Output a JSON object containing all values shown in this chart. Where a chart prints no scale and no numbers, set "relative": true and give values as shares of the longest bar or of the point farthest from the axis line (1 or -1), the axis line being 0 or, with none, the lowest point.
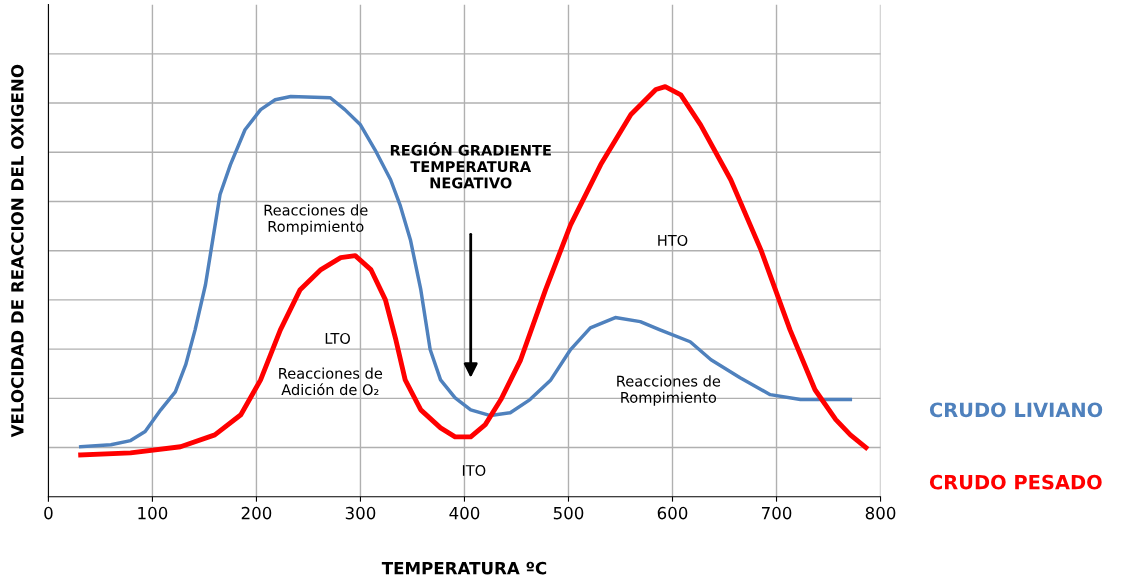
{
  "chart_data": {
    "type": "line",
    "relative": true,
    "xlabel": "TEMPERATURA ºC",
    "ylabel": "VELOCIDAD DE REACCION DEL OXIGENO",
    "xlim": [
      0,
      800
    ],
    "xticks": [
      0,
      100,
      200,
      300,
      400,
      500,
      600,
      700,
      800
    ],
    "grid": true,
    "legend": "right",
    "marker": "none",
    "line_style": "solid",
    "series": [
      {
        "name": "CRUDO LIVIANO",
        "color": "#4f81bd",
        "x": [
          31,
          60,
          79,
          93,
          108,
          122,
          132,
          141,
          151,
          158,
          165,
          175,
          189,
          204,
          218,
          233,
          271,
          285,
          300,
          314,
          329,
          338,
          348,
          358,
          367,
          377,
          391,
          406,
          425,
          444,
          463,
          483,
          502,
          521,
          545,
          569,
          588,
          617,
          637,
          665,
          694,
          723,
          771
        ],
        "values": [
          0.122,
          0.127,
          0.137,
          0.159,
          0.212,
          0.256,
          0.322,
          0.407,
          0.517,
          0.627,
          0.737,
          0.81,
          0.895,
          0.944,
          0.968,
          0.976,
          0.973,
          0.944,
          0.907,
          0.846,
          0.773,
          0.712,
          0.627,
          0.505,
          0.359,
          0.285,
          0.241,
          0.212,
          0.198,
          0.205,
          0.237,
          0.285,
          0.359,
          0.412,
          0.437,
          0.427,
          0.407,
          0.378,
          0.334,
          0.29,
          0.249,
          0.237,
          0.237
        ]
      },
      {
        "name": "CRUDO PESADO",
        "color": "#ff0000",
        "x": [
          31,
          79,
          127,
          160,
          185,
          204,
          223,
          242,
          262,
          281,
          295,
          310,
          324,
          334,
          343,
          358,
          377,
          391,
          406,
          420,
          435,
          454,
          478,
          502,
          531,
          560,
          584,
          593,
          608,
          627,
          656,
          685,
          713,
          737,
          757,
          771,
          786
        ],
        "values": [
          0.102,
          0.107,
          0.122,
          0.151,
          0.2,
          0.285,
          0.407,
          0.505,
          0.554,
          0.583,
          0.588,
          0.554,
          0.48,
          0.383,
          0.285,
          0.212,
          0.168,
          0.146,
          0.146,
          0.176,
          0.237,
          0.334,
          0.505,
          0.663,
          0.81,
          0.932,
          0.993,
          1.0,
          0.98,
          0.907,
          0.773,
          0.602,
          0.407,
          0.261,
          0.188,
          0.151,
          0.12
        ]
      }
    ],
    "annotations": [
      "Reacciones de\nRompimiento",
      "LTO",
      "Reacciones de\nAdición de O₂",
      "REGIÓN GRADIENTE\nTEMPERATURA\nNEGATIVO",
      "HTO",
      "Reacciones de\nRompimiento",
      "ITO"
    ]
  }
}
